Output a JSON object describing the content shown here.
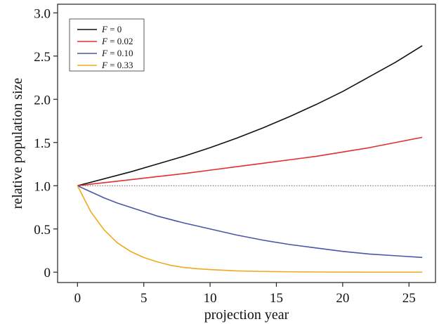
{
  "chart_data": {
    "type": "line",
    "xlabel": "projection year",
    "ylabel": "relative population size",
    "xlim": [
      -1.5,
      27
    ],
    "ylim": [
      -0.12,
      3.1
    ],
    "xticks": [
      0,
      5,
      10,
      15,
      20,
      25
    ],
    "yticks": [
      0,
      0.5,
      1.0,
      1.5,
      2.0,
      2.5,
      3.0
    ],
    "ytick_labels": [
      "0",
      "0.5",
      "1.0",
      "1.5",
      "2.0",
      "2.5",
      "3.0"
    ],
    "xtick_labels": [
      "0",
      "5",
      "10",
      "15",
      "20",
      "25"
    ],
    "reference_line": {
      "y": 1.0,
      "style": "dotted",
      "color": "#555555"
    },
    "legend_position": "top-left",
    "grid": false,
    "series": [
      {
        "name_var": "F",
        "name_value": "= 0",
        "color": "#111111",
        "x": [
          0,
          2,
          4,
          6,
          8,
          10,
          12,
          14,
          16,
          18,
          20,
          22,
          24,
          26
        ],
        "y": [
          1.0,
          1.08,
          1.16,
          1.25,
          1.34,
          1.44,
          1.55,
          1.67,
          1.8,
          1.94,
          2.09,
          2.26,
          2.43,
          2.62
        ]
      },
      {
        "name_var": "F",
        "name_value": "= 0.02",
        "color": "#e0302f",
        "x": [
          0,
          2,
          4,
          6,
          8,
          10,
          12,
          14,
          16,
          18,
          20,
          22,
          24,
          26
        ],
        "y": [
          1.0,
          1.035,
          1.07,
          1.105,
          1.14,
          1.18,
          1.22,
          1.26,
          1.3,
          1.34,
          1.39,
          1.44,
          1.5,
          1.56
        ]
      },
      {
        "name_var": "F",
        "name_value": "= 0.10",
        "color": "#4a56a8",
        "x": [
          0,
          1,
          2,
          3,
          4,
          5,
          6,
          8,
          10,
          12,
          14,
          16,
          18,
          20,
          22,
          24,
          26
        ],
        "y": [
          1.0,
          0.93,
          0.86,
          0.8,
          0.75,
          0.7,
          0.65,
          0.57,
          0.5,
          0.43,
          0.37,
          0.32,
          0.28,
          0.24,
          0.21,
          0.19,
          0.17
        ]
      },
      {
        "name_var": "F",
        "name_value": "= 0.33",
        "color": "#f2a81f",
        "x": [
          0,
          1,
          2,
          3,
          4,
          5,
          6,
          7,
          8,
          9,
          10,
          12,
          14,
          16,
          18,
          20,
          22,
          24,
          26
        ],
        "y": [
          1.0,
          0.7,
          0.49,
          0.34,
          0.24,
          0.17,
          0.12,
          0.08,
          0.055,
          0.04,
          0.03,
          0.015,
          0.008,
          0.004,
          0.002,
          0.001,
          0.0,
          0.0,
          0.0
        ]
      }
    ]
  }
}
